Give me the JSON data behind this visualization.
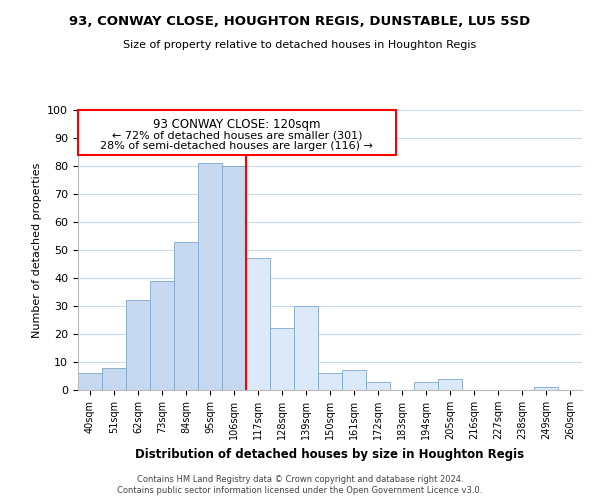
{
  "title1": "93, CONWAY CLOSE, HOUGHTON REGIS, DUNSTABLE, LU5 5SD",
  "title2": "Size of property relative to detached houses in Houghton Regis",
  "xlabel": "Distribution of detached houses by size in Houghton Regis",
  "ylabel": "Number of detached properties",
  "bar_labels": [
    "40sqm",
    "51sqm",
    "62sqm",
    "73sqm",
    "84sqm",
    "95sqm",
    "106sqm",
    "117sqm",
    "128sqm",
    "139sqm",
    "150sqm",
    "161sqm",
    "172sqm",
    "183sqm",
    "194sqm",
    "205sqm",
    "216sqm",
    "227sqm",
    "238sqm",
    "249sqm",
    "260sqm"
  ],
  "bar_values": [
    6,
    8,
    32,
    39,
    53,
    81,
    80,
    47,
    22,
    30,
    6,
    7,
    3,
    0,
    3,
    4,
    0,
    0,
    0,
    1,
    0
  ],
  "bar_color_left": "#c6d9f0",
  "bar_color_right": "#dce9f8",
  "property_line_x": 6.5,
  "annotation_title": "93 CONWAY CLOSE: 120sqm",
  "annotation_line1": "← 72% of detached houses are smaller (301)",
  "annotation_line2": "28% of semi-detached houses are larger (116) →",
  "ylim": [
    0,
    100
  ],
  "yticks": [
    0,
    10,
    20,
    30,
    40,
    50,
    60,
    70,
    80,
    90,
    100
  ],
  "footnote1": "Contains HM Land Registry data © Crown copyright and database right 2024.",
  "footnote2": "Contains public sector information licensed under the Open Government Licence v3.0.",
  "bg_color": "#ffffff",
  "grid_color": "#c8d8ea"
}
